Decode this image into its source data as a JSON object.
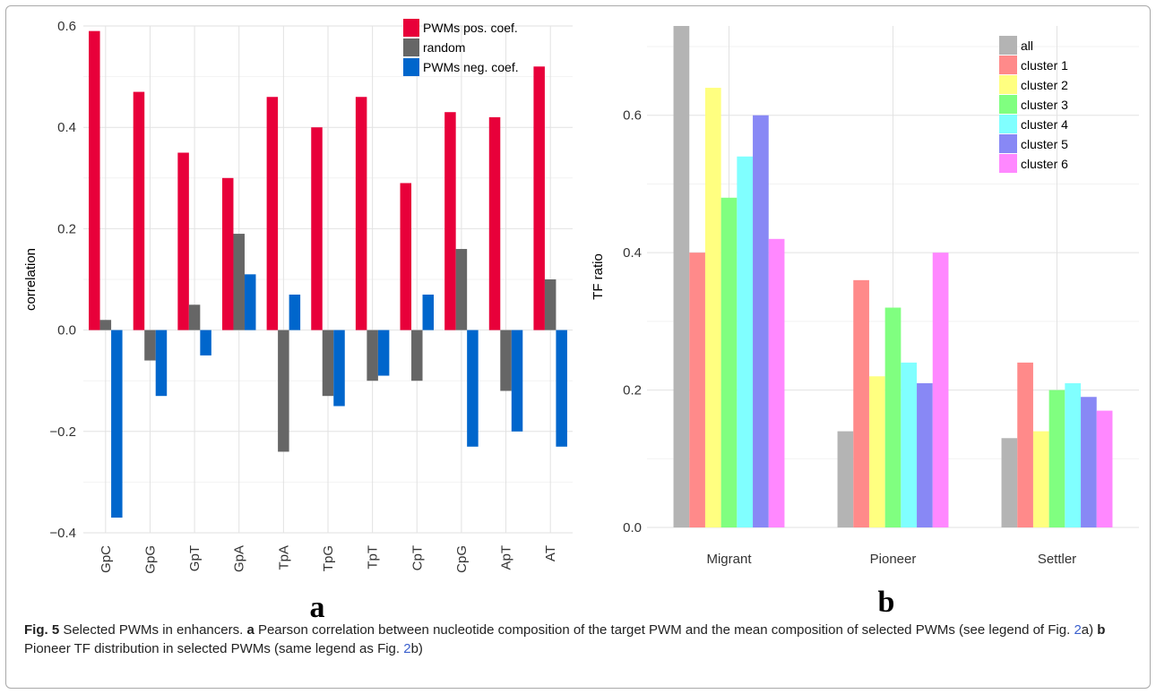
{
  "chart_data": [
    {
      "type": "bar",
      "panel_letter": "a",
      "ylabel": "correlation",
      "xlabel": "",
      "ylim": [
        -0.4,
        0.6
      ],
      "yticks": [
        -0.4,
        -0.2,
        0.0,
        0.2,
        0.4,
        0.6
      ],
      "ytick_labels": [
        "−0.4",
        "−0.2",
        "0.0",
        "0.2",
        "0.4",
        "0.6"
      ],
      "categories": [
        "GpC",
        "GpG",
        "GpT",
        "GpA",
        "TpA",
        "TpG",
        "TpT",
        "CpT",
        "CpG",
        "ApT",
        "AT"
      ],
      "series": [
        {
          "name": "PWMs pos. coef.",
          "color": "#e8003a",
          "values": [
            0.59,
            0.47,
            0.35,
            0.3,
            0.46,
            0.4,
            0.46,
            0.29,
            0.43,
            0.42,
            0.52
          ]
        },
        {
          "name": "random",
          "color": "#666666",
          "values": [
            0.02,
            -0.06,
            0.05,
            0.19,
            -0.24,
            -0.13,
            -0.1,
            -0.1,
            0.16,
            -0.12,
            0.1
          ]
        },
        {
          "name": "PWMs neg. coef.",
          "color": "#0066cc",
          "values": [
            -0.37,
            -0.13,
            -0.05,
            0.11,
            0.07,
            -0.15,
            -0.09,
            0.07,
            -0.23,
            -0.2,
            -0.23
          ]
        }
      ],
      "grid": true,
      "legend_position": "top-right"
    },
    {
      "type": "bar",
      "panel_letter": "b",
      "ylabel": "TF ratio",
      "xlabel": "",
      "ylim": [
        0.0,
        0.73
      ],
      "yticks": [
        0.0,
        0.2,
        0.4,
        0.6
      ],
      "ytick_labels": [
        "0.0",
        "0.2",
        "0.4",
        "0.6"
      ],
      "categories": [
        "Migrant",
        "Pioneer",
        "Settler"
      ],
      "series": [
        {
          "name": "all",
          "color": "#b4b4b4",
          "values": [
            0.73,
            0.14,
            0.13
          ]
        },
        {
          "name": "cluster 1",
          "color": "#ff8a8a",
          "values": [
            0.4,
            0.36,
            0.24
          ]
        },
        {
          "name": "cluster 2",
          "color": "#ffff80",
          "values": [
            0.64,
            0.22,
            0.14
          ]
        },
        {
          "name": "cluster 3",
          "color": "#80ff80",
          "values": [
            0.48,
            0.32,
            0.2
          ]
        },
        {
          "name": "cluster 4",
          "color": "#80ffff",
          "values": [
            0.54,
            0.24,
            0.21
          ]
        },
        {
          "name": "cluster 5",
          "color": "#8888f5",
          "values": [
            0.6,
            0.21,
            0.19
          ]
        },
        {
          "name": "cluster 6",
          "color": "#ff88ff",
          "values": [
            0.42,
            0.4,
            0.17
          ]
        }
      ],
      "grid": true,
      "legend_position": "top-right"
    }
  ],
  "caption": {
    "fig_label": "Fig. 5",
    "text1": " Selected PWMs in enhancers. ",
    "a_label": "a",
    "text2": " Pearson correlation between nucleotide composition of the target PWM and the mean composition of selected PWMs (see legend of Fig. ",
    "ref_a_num": "2",
    "ref_a_letter": "a) ",
    "b_label": "b",
    "text3": " Pioneer TF distribution in selected PWMs (same legend as Fig. ",
    "ref_b_num": "2",
    "ref_b_letter": "b)"
  }
}
